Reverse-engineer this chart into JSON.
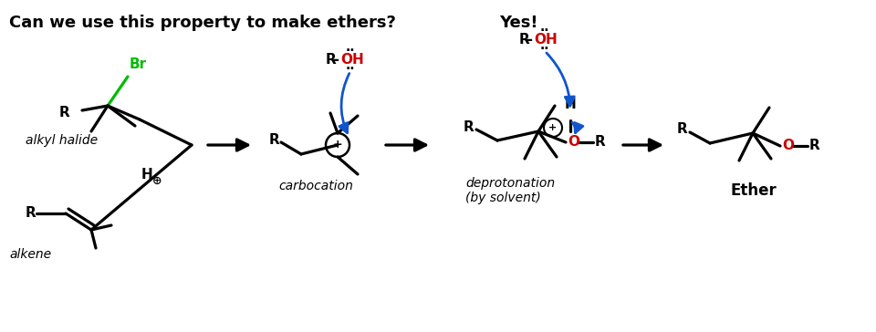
{
  "title": "Can we use this property to make ethers?",
  "yes_label": "Yes!",
  "background_color": "#ffffff",
  "text_color": "#000000",
  "green_color": "#00bb00",
  "red_color": "#cc0000",
  "blue_color": "#1155cc",
  "label_alkyl_halide": "alkyl halide",
  "label_alkene": "alkene",
  "label_carbocation": "carbocation",
  "label_deprotonation": "deprotonation\n(by solvent)",
  "label_ether": "Ether"
}
